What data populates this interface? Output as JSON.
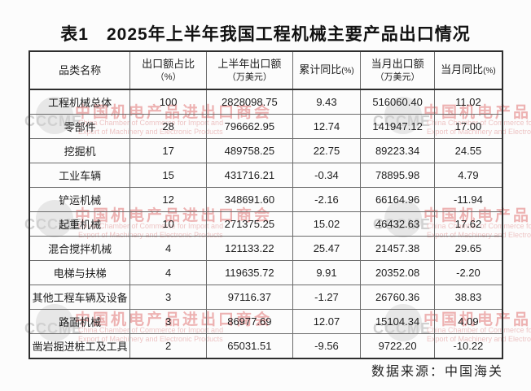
{
  "title": "表1　2025年上半年我国工程机械主要产品出口情况",
  "table": {
    "columns": [
      {
        "line1": "品类名称"
      },
      {
        "line1": "出口额占比",
        "line2": "（%）"
      },
      {
        "line1": "上半年出口额",
        "line2": "（万美元）"
      },
      {
        "line1": "累计同比",
        "suffix": "(%)"
      },
      {
        "line1": "当月出口额",
        "line2": "（万美元）"
      },
      {
        "line1": "当月同比",
        "suffix": "(%)"
      }
    ],
    "rows": [
      [
        "工程机械总体",
        "100",
        "2828098.75",
        "9.43",
        "516060.40",
        "11.02"
      ],
      [
        "零部件",
        "28",
        "796662.95",
        "12.74",
        "141947.12",
        "17.00"
      ],
      [
        "挖掘机",
        "17",
        "489758.25",
        "22.75",
        "89223.34",
        "24.55"
      ],
      [
        "工业车辆",
        "15",
        "431716.21",
        "-0.34",
        "78895.98",
        "4.79"
      ],
      [
        "铲运机械",
        "12",
        "348691.60",
        "-2.16",
        "66164.96",
        "-11.94"
      ],
      [
        "起重机械",
        "10",
        "271375.25",
        "15.02",
        "46432.63",
        "17.62"
      ],
      [
        "混合搅拌机械",
        "4",
        "121133.22",
        "25.47",
        "21457.38",
        "29.65"
      ],
      [
        "电梯与扶梯",
        "4",
        "119635.72",
        "9.91",
        "20352.08",
        "-2.20"
      ],
      [
        "其他工程车辆及设备",
        "3",
        "97116.37",
        "-1.27",
        "26760.36",
        "38.83"
      ],
      [
        "路面机械",
        "3",
        "86977.69",
        "12.07",
        "15104.34",
        "4.09"
      ],
      [
        "凿岩掘进桩工及工具",
        "2",
        "65031.51",
        "-9.56",
        "9722.20",
        "-10.22"
      ]
    ]
  },
  "footer": {
    "source": "数据来源：中国海关"
  },
  "watermark": {
    "logo_text": "CCCME",
    "cn": "中国机电产品进出口商会",
    "en_line1": "China Chamber of Commerce for Import and",
    "en_line2": "Export of Machinery and Electronic Products"
  },
  "colors": {
    "negative_value": "#d9534f",
    "watermark_pink": "#eaa0a0",
    "watermark_grey": "#c6c6c6"
  }
}
